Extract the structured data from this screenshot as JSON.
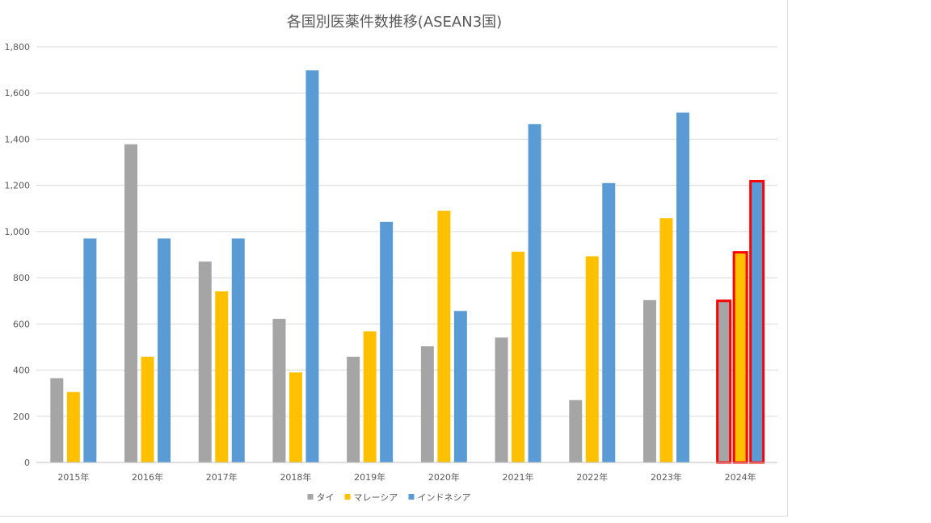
{
  "chart_data": {
    "type": "bar",
    "title": "各国別医薬件数推移(ASEAN3国)",
    "xlabel": "",
    "ylabel": "",
    "categories": [
      "2015年",
      "2016年",
      "2017年",
      "2018年",
      "2019年",
      "2020年",
      "2021年",
      "2022年",
      "2023年",
      "2024年"
    ],
    "series": [
      {
        "name": "タイ",
        "color": "#a5a5a5",
        "values": [
          365,
          1378,
          870,
          622,
          458,
          503,
          541,
          270,
          703,
          700
        ]
      },
      {
        "name": "マレーシア",
        "color": "#ffc000",
        "values": [
          305,
          458,
          741,
          390,
          568,
          1090,
          913,
          893,
          1058,
          910
        ]
      },
      {
        "name": "インドネシア",
        "color": "#5b9bd5",
        "values": [
          970,
          970,
          970,
          1698,
          1042,
          656,
          1465,
          1210,
          1515,
          1218
        ]
      }
    ],
    "highlighted_category": "2024年",
    "highlight_color": "#ff0000",
    "ylim": [
      0,
      1800
    ],
    "yticks": [
      0,
      200,
      400,
      600,
      800,
      1000,
      1200,
      1400,
      1600,
      1800
    ],
    "ytick_labels": [
      "0",
      "200",
      "400",
      "600",
      "800",
      "1,000",
      "1,200",
      "1,400",
      "1,600",
      "1,800"
    ],
    "grid": true,
    "legend_position": "bottom"
  }
}
